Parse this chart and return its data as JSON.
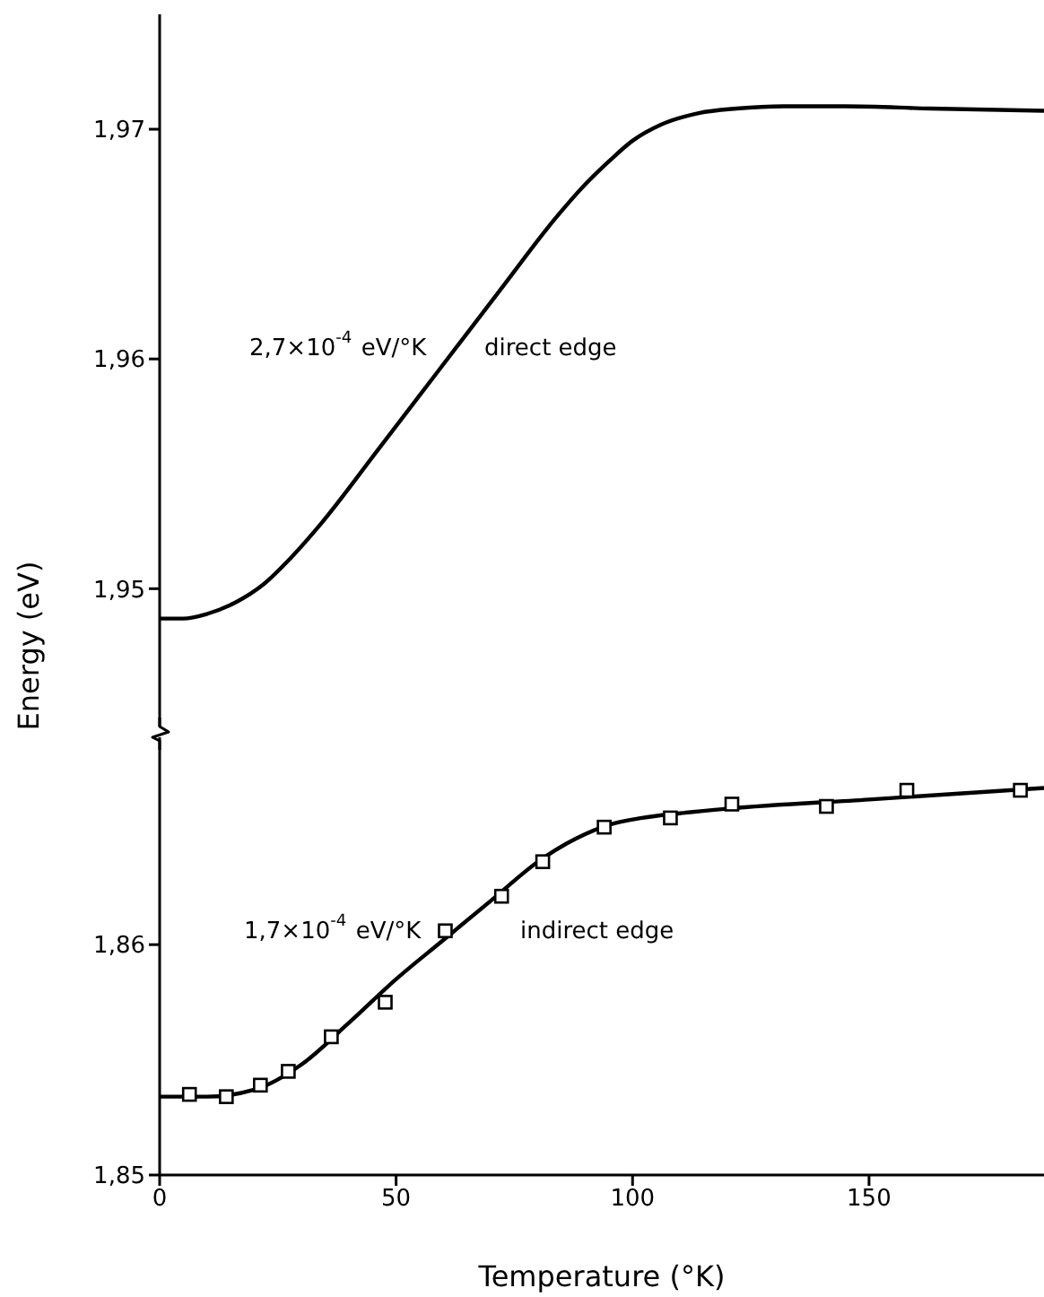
{
  "chart_data": [
    {
      "type": "line",
      "ylabel": "Energy (eV)",
      "xlim": [
        0,
        187
      ],
      "ylim": [
        1.944,
        1.975
      ],
      "yticks": [
        {
          "value": 1.95,
          "label": "1,95"
        },
        {
          "value": 1.96,
          "label": "1,96"
        },
        {
          "value": 1.97,
          "label": "1,97"
        }
      ],
      "tick_labels": "y",
      "annotations": [
        "2,7×10$^{-4}$ eV/°K",
        "direct edge"
      ],
      "series": [
        {
          "type": "line",
          "color": "#000000",
          "marker": "none",
          "line_style": "solid",
          "x": [
            0,
            5,
            10,
            16,
            22,
            28,
            34,
            46,
            59,
            72,
            84,
            90,
            95,
            100,
            106,
            114,
            122,
            132,
            145,
            163,
            187
          ],
          "values": [
            1.9487,
            1.9487,
            1.9489,
            1.9494,
            1.9502,
            1.9514,
            1.9528,
            1.956,
            1.9595,
            1.963,
            1.9662,
            1.9676,
            1.9686,
            1.9695,
            1.9702,
            1.9707,
            1.9709,
            1.971,
            1.971,
            1.9709,
            1.9708
          ]
        }
      ]
    },
    {
      "type": "line",
      "xlabel": "Temperature (°K)",
      "xlim": [
        0,
        187
      ],
      "xticks": [
        0,
        50,
        100,
        150
      ],
      "ylim": [
        1.85,
        1.869
      ],
      "yticks": [
        {
          "value": 1.85,
          "label": "1,85"
        },
        {
          "value": 1.86,
          "label": "1,86"
        }
      ],
      "annotations": [
        "1,7×10$^{-4}$eV/°K",
        "indirect edge"
      ],
      "series": [
        {
          "type": "line",
          "color": "#000000",
          "marker": "none",
          "line_style": "solid",
          "x": [
            0,
            10,
            20,
            30,
            40,
            50,
            60,
            70,
            80,
            88,
            95,
            102,
            110,
            120,
            150,
            187
          ],
          "values": [
            1.8534,
            1.8534,
            1.8537,
            1.8548,
            1.8566,
            1.8585,
            1.8602,
            1.8619,
            1.8636,
            1.8646,
            1.8652,
            1.8655,
            1.8657,
            1.8659,
            1.8663,
            1.8668
          ]
        },
        {
          "type": "scatter",
          "color": "#000000",
          "marker": "square",
          "x": [
            6.3,
            14.1,
            21.3,
            27.2,
            36.3,
            47.7,
            60.4,
            72.3,
            81,
            94,
            108,
            121,
            141,
            158,
            182
          ],
          "values": [
            1.8535,
            1.8534,
            1.8539,
            1.8545,
            1.856,
            1.8575,
            1.8606,
            1.8621,
            1.8636,
            1.8651,
            1.8655,
            1.8661,
            1.866,
            1.8667,
            1.8667
          ]
        }
      ]
    }
  ]
}
